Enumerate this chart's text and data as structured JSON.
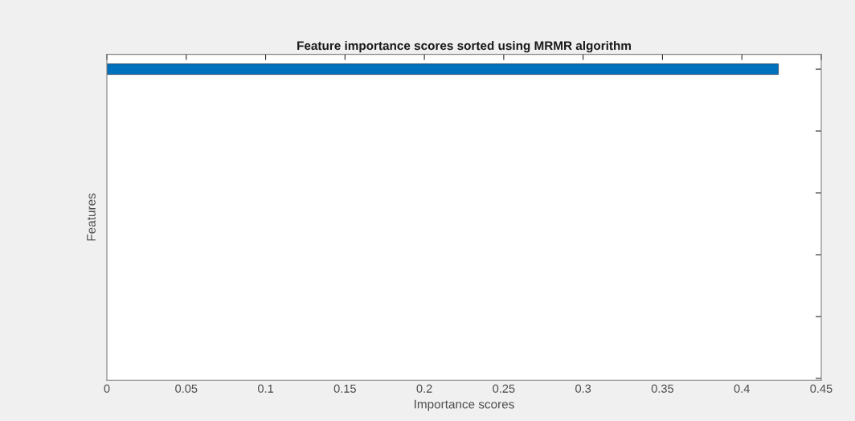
{
  "chart_data": {
    "type": "bar",
    "orientation": "horizontal",
    "title": "Feature importance scores sorted using MRMR algorithm",
    "xlabel": "Importance scores",
    "ylabel": "Features",
    "categories": [
      null,
      null,
      null,
      null,
      null,
      null
    ],
    "values": [
      0.423,
      null,
      null,
      null,
      null,
      null
    ],
    "color": "#0072bd",
    "xlim": [
      0,
      0.45
    ],
    "xticks": [
      0,
      0.05,
      0.1,
      0.15,
      0.2,
      0.25,
      0.3,
      0.35,
      0.4,
      0.45
    ],
    "grid": false,
    "legend": false,
    "tick_labels": "x"
  }
}
